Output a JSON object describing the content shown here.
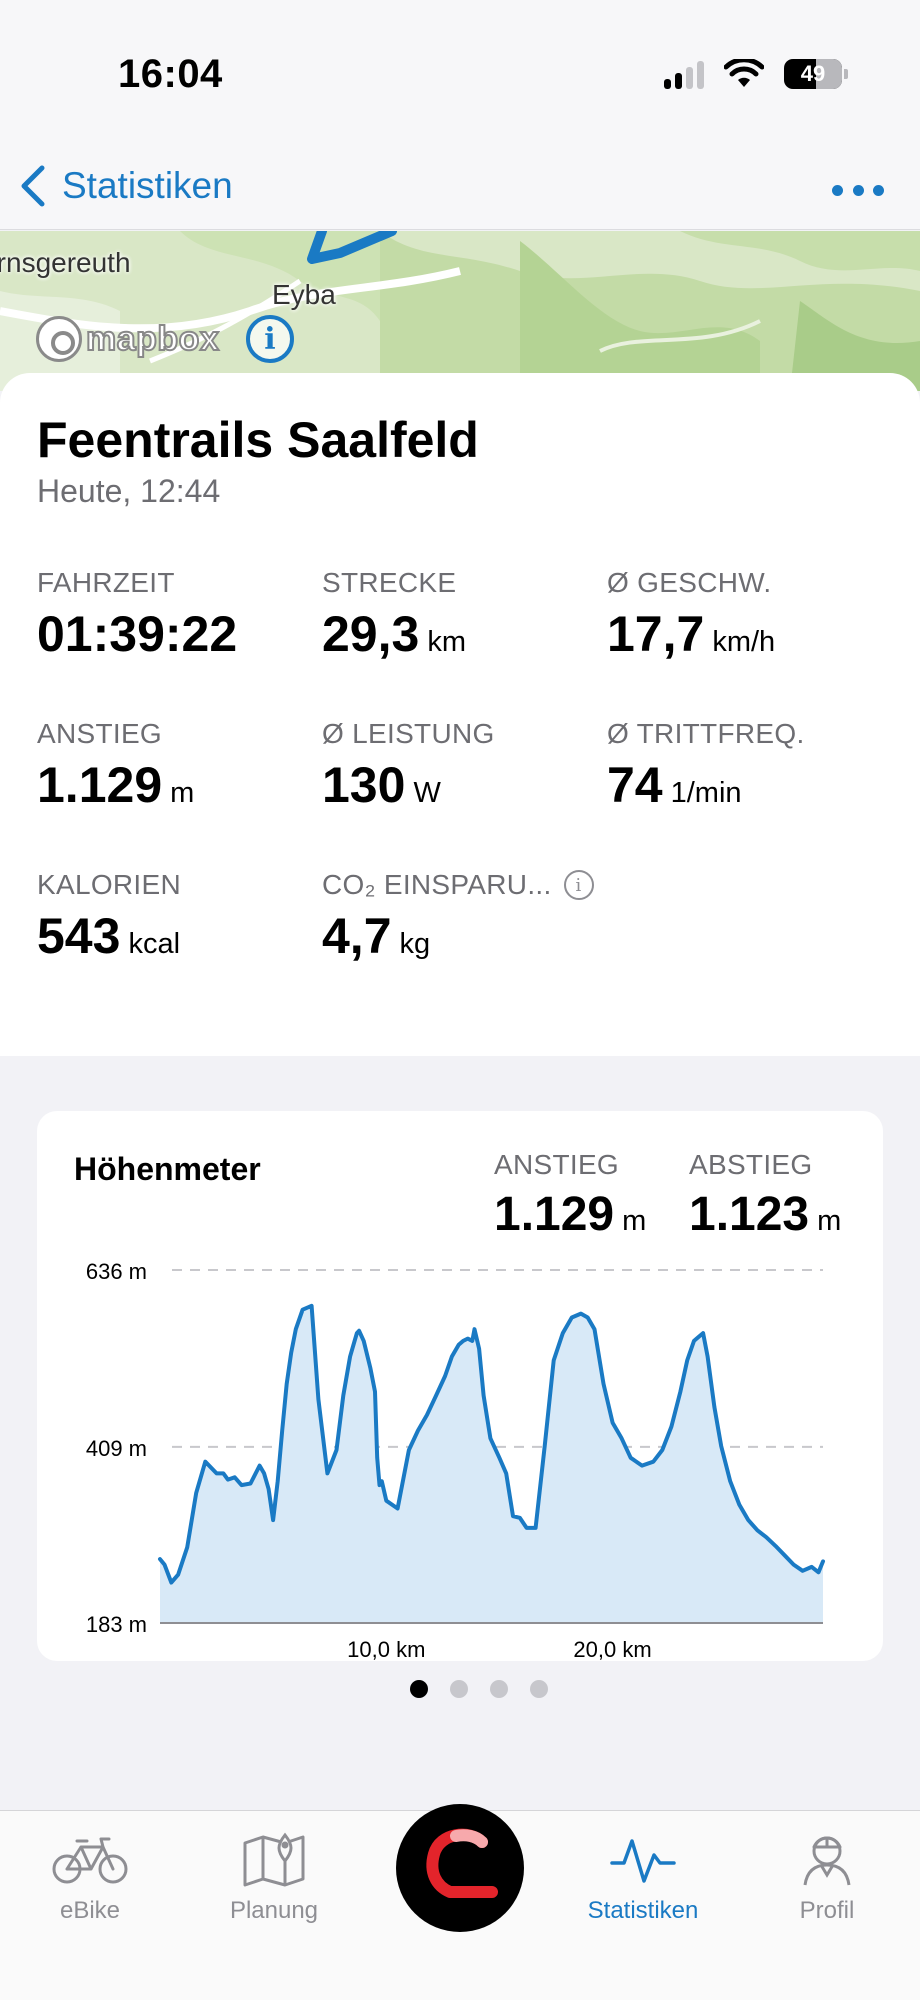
{
  "status_bar": {
    "time": "16:04",
    "battery": "49"
  },
  "nav": {
    "back_label": "Statistiken"
  },
  "map": {
    "place_1": "Ernsgereuth",
    "place_2": "Eyba",
    "attribution_logo": "mapbox",
    "info_icon": "info-icon"
  },
  "ride": {
    "title": "Feentrails Saalfeld",
    "date": "Heute, 12:44",
    "stats": [
      {
        "label": "FAHRZEIT",
        "value": "01:39:22",
        "unit": ""
      },
      {
        "label": "STRECKE",
        "value": "29,3",
        "unit": "km"
      },
      {
        "label": "Ø GESCHW.",
        "value": "17,7",
        "unit": "km/h"
      },
      {
        "label": "ANSTIEG",
        "value": "1.129",
        "unit": "m"
      },
      {
        "label": "Ø LEISTUNG",
        "value": "130",
        "unit": "W"
      },
      {
        "label": "Ø TRITTFREQ.",
        "value": "74",
        "unit": "1/min"
      },
      {
        "label": "KALORIEN",
        "value": "543",
        "unit": "kcal"
      },
      {
        "label": "CO₂ EINSPARU...",
        "value": "4,7",
        "unit": "kg"
      }
    ]
  },
  "elevation": {
    "title": "Höhenmeter",
    "ascent_label": "ANSTIEG",
    "ascent_value": "1.129",
    "ascent_unit": "m",
    "descent_label": "ABSTIEG",
    "descent_value": "1.123",
    "descent_unit": "m"
  },
  "chart_data": {
    "type": "area",
    "title": "Höhenmeter",
    "xlabel": "",
    "ylabel": "",
    "x_unit": "km",
    "y_unit": "m",
    "xlim": [
      0,
      29.3
    ],
    "ylim": [
      183,
      636
    ],
    "y_ticks": [
      636,
      409,
      183
    ],
    "y_tick_labels": [
      "636 m",
      "409 m",
      "183 m"
    ],
    "x_ticks": [
      10,
      20
    ],
    "x_tick_labels": [
      "10,0 km",
      "20,0 km"
    ],
    "grid": "dashed horizontal",
    "color": "#1a7ac4",
    "fill": "#d8e9f7",
    "x": [
      0,
      0.2,
      0.5,
      0.8,
      1.2,
      1.6,
      2.0,
      2.5,
      2.8,
      3.0,
      3.3,
      3.6,
      4.0,
      4.4,
      4.6,
      4.8,
      5.0,
      5.2,
      5.4,
      5.6,
      5.8,
      6.0,
      6.3,
      6.7,
      7.0,
      7.4,
      7.8,
      8.1,
      8.4,
      8.6,
      8.7,
      8.8,
      9.0,
      9.3,
      9.5,
      9.6,
      9.7,
      9.8,
      10.0,
      10.5,
      11.0,
      11.4,
      11.8,
      12.2,
      12.6,
      12.9,
      13.2,
      13.4,
      13.6,
      13.8,
      13.9,
      14.1,
      14.3,
      14.6,
      15.0,
      15.3,
      15.6,
      15.9,
      16.2,
      16.6,
      17.0,
      17.4,
      17.8,
      18.2,
      18.6,
      18.9,
      19.2,
      19.6,
      20.0,
      20.4,
      20.8,
      21.3,
      21.8,
      22.2,
      22.6,
      23.0,
      23.3,
      23.6,
      23.8,
      24.0,
      24.2,
      24.5,
      24.8,
      25.2,
      25.6,
      26.0,
      26.4,
      26.8,
      27.2,
      27.6,
      28.0,
      28.4,
      28.8,
      29.1,
      29.3
    ],
    "values": [
      265,
      258,
      235,
      245,
      280,
      350,
      390,
      375,
      375,
      367,
      370,
      360,
      362,
      385,
      375,
      355,
      315,
      365,
      430,
      490,
      530,
      560,
      585,
      590,
      470,
      375,
      405,
      475,
      525,
      545,
      555,
      558,
      545,
      510,
      480,
      395,
      360,
      365,
      340,
      330,
      405,
      430,
      450,
      475,
      500,
      525,
      540,
      545,
      548,
      545,
      560,
      535,
      475,
      420,
      395,
      375,
      320,
      318,
      305,
      305,
      410,
      520,
      555,
      575,
      580,
      575,
      560,
      490,
      440,
      420,
      395,
      385,
      390,
      405,
      435,
      480,
      520,
      545,
      550,
      555,
      525,
      460,
      410,
      365,
      335,
      315,
      302,
      293,
      282,
      270,
      258,
      250,
      255,
      248,
      262
    ]
  },
  "pager": {
    "pages": 4,
    "active": 0
  },
  "tabs": [
    {
      "label": "eBike",
      "icon": "bike-icon"
    },
    {
      "label": "Planung",
      "icon": "map-pin-icon"
    },
    {
      "label": "Statistiken",
      "icon": "activity-icon"
    },
    {
      "label": "Profil",
      "icon": "profile-icon"
    }
  ],
  "colors": {
    "accent": "#1a7ac4",
    "inactive": "#8e8e93",
    "center_button_bg": "#000000",
    "center_button_logo": "#e3242b"
  }
}
